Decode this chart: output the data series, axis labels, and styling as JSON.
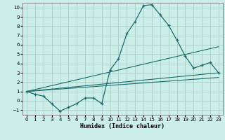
{
  "title": "",
  "xlabel": "Humidex (Indice chaleur)",
  "bg_color": "#cceee8",
  "grid_color": "#aacccc",
  "line_color": "#1a6b6b",
  "xlim": [
    -0.5,
    23.5
  ],
  "ylim": [
    -1.5,
    10.5
  ],
  "xticks": [
    0,
    1,
    2,
    3,
    4,
    5,
    6,
    7,
    8,
    9,
    10,
    11,
    12,
    13,
    14,
    15,
    16,
    17,
    18,
    19,
    20,
    21,
    22,
    23
  ],
  "yticks": [
    -1,
    0,
    1,
    2,
    3,
    4,
    5,
    6,
    7,
    8,
    9,
    10
  ],
  "curve1_x": [
    0,
    1,
    2,
    3,
    4,
    5,
    6,
    7,
    8,
    9,
    10,
    11,
    12,
    13,
    14,
    15,
    16,
    17,
    18,
    19,
    20,
    21,
    22,
    23
  ],
  "curve1_y": [
    1.0,
    0.7,
    0.5,
    -0.3,
    -1.1,
    -0.7,
    -0.3,
    0.3,
    0.3,
    -0.3,
    3.3,
    4.5,
    7.2,
    8.5,
    10.2,
    10.3,
    9.2,
    8.1,
    6.5,
    4.8,
    3.5,
    3.8,
    4.1,
    3.0
  ],
  "line1_x": [
    0,
    23
  ],
  "line1_y": [
    1.0,
    5.8
  ],
  "line2_x": [
    0,
    23
  ],
  "line2_y": [
    1.0,
    3.0
  ],
  "line3_x": [
    0,
    23
  ],
  "line3_y": [
    1.0,
    2.5
  ]
}
